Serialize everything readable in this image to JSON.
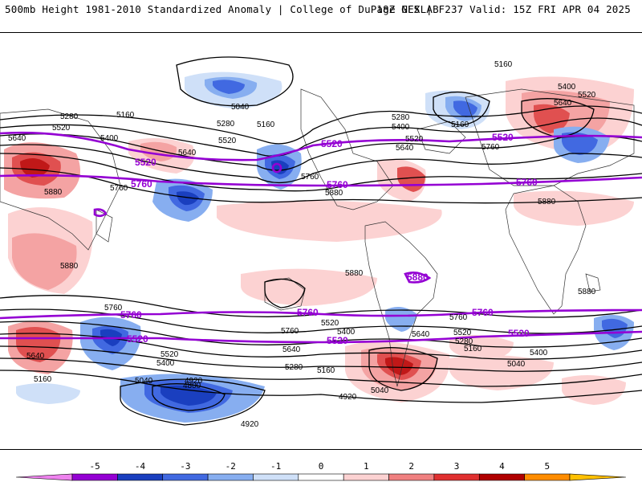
{
  "header": {
    "left": "500mb Height 1981-2010 Standardized Anomaly | College of DuPage NEXLAB",
    "right": "18Z GFS | F237 Valid: 15Z FRI APR 04 2025"
  },
  "contour_labels": {
    "l5160": "5160",
    "l5400": "5400",
    "l5520": "5520",
    "l5640": "5640",
    "l5760": "5760",
    "l5880": "5880",
    "l5280": "5280",
    "l5040": "5040",
    "l4920": "4920",
    "l4800": "4800"
  },
  "colorbar": {
    "ticks": [
      "-5",
      "-4",
      "-3",
      "-2",
      "-1",
      "0",
      "1",
      "2",
      "3",
      "4",
      "5"
    ],
    "colors": [
      "#ee82ee",
      "#9400d3",
      "#1a3fbf",
      "#4169e1",
      "#87aef0",
      "#cfe0f8",
      "#ffffff",
      "#fcd2d2",
      "#f08080",
      "#e03030",
      "#b00000",
      "#ff8c00",
      "#ffc000"
    ]
  }
}
